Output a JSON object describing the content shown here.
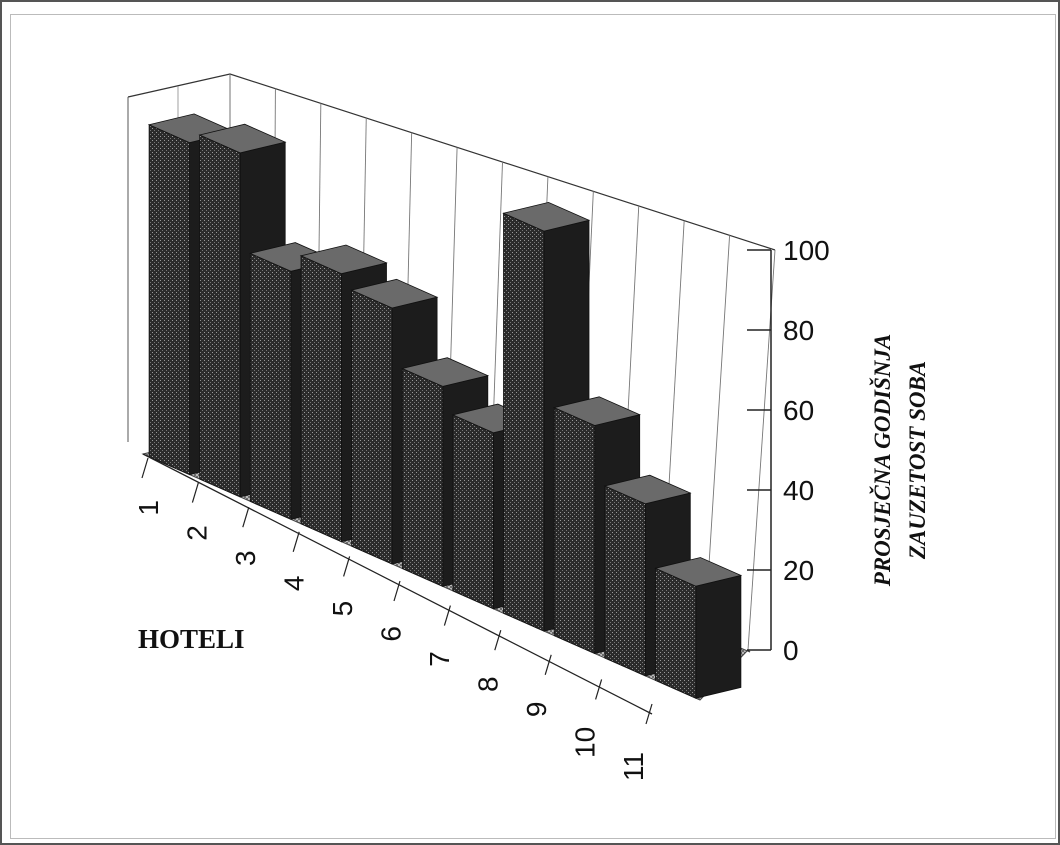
{
  "chart_data": {
    "type": "bar",
    "categories": [
      "1",
      "2",
      "3",
      "4",
      "5",
      "6",
      "7",
      "8",
      "9",
      "10",
      "11"
    ],
    "values": [
      83,
      86,
      62,
      67,
      64,
      50,
      44,
      100,
      57,
      43,
      28
    ],
    "title": "",
    "xlabel": "HOTELI",
    "ylabel": [
      "PROSJEČNA GODIŠNJA",
      "ZAUZETOST SOBA"
    ],
    "yticks": [
      "0",
      "20",
      "40",
      "60",
      "80",
      "100"
    ],
    "ylim": [
      0,
      100
    ],
    "grid": true,
    "projection": "3d",
    "bar_color": "#2f2f2f",
    "floor_color": "#8a8a8a"
  }
}
